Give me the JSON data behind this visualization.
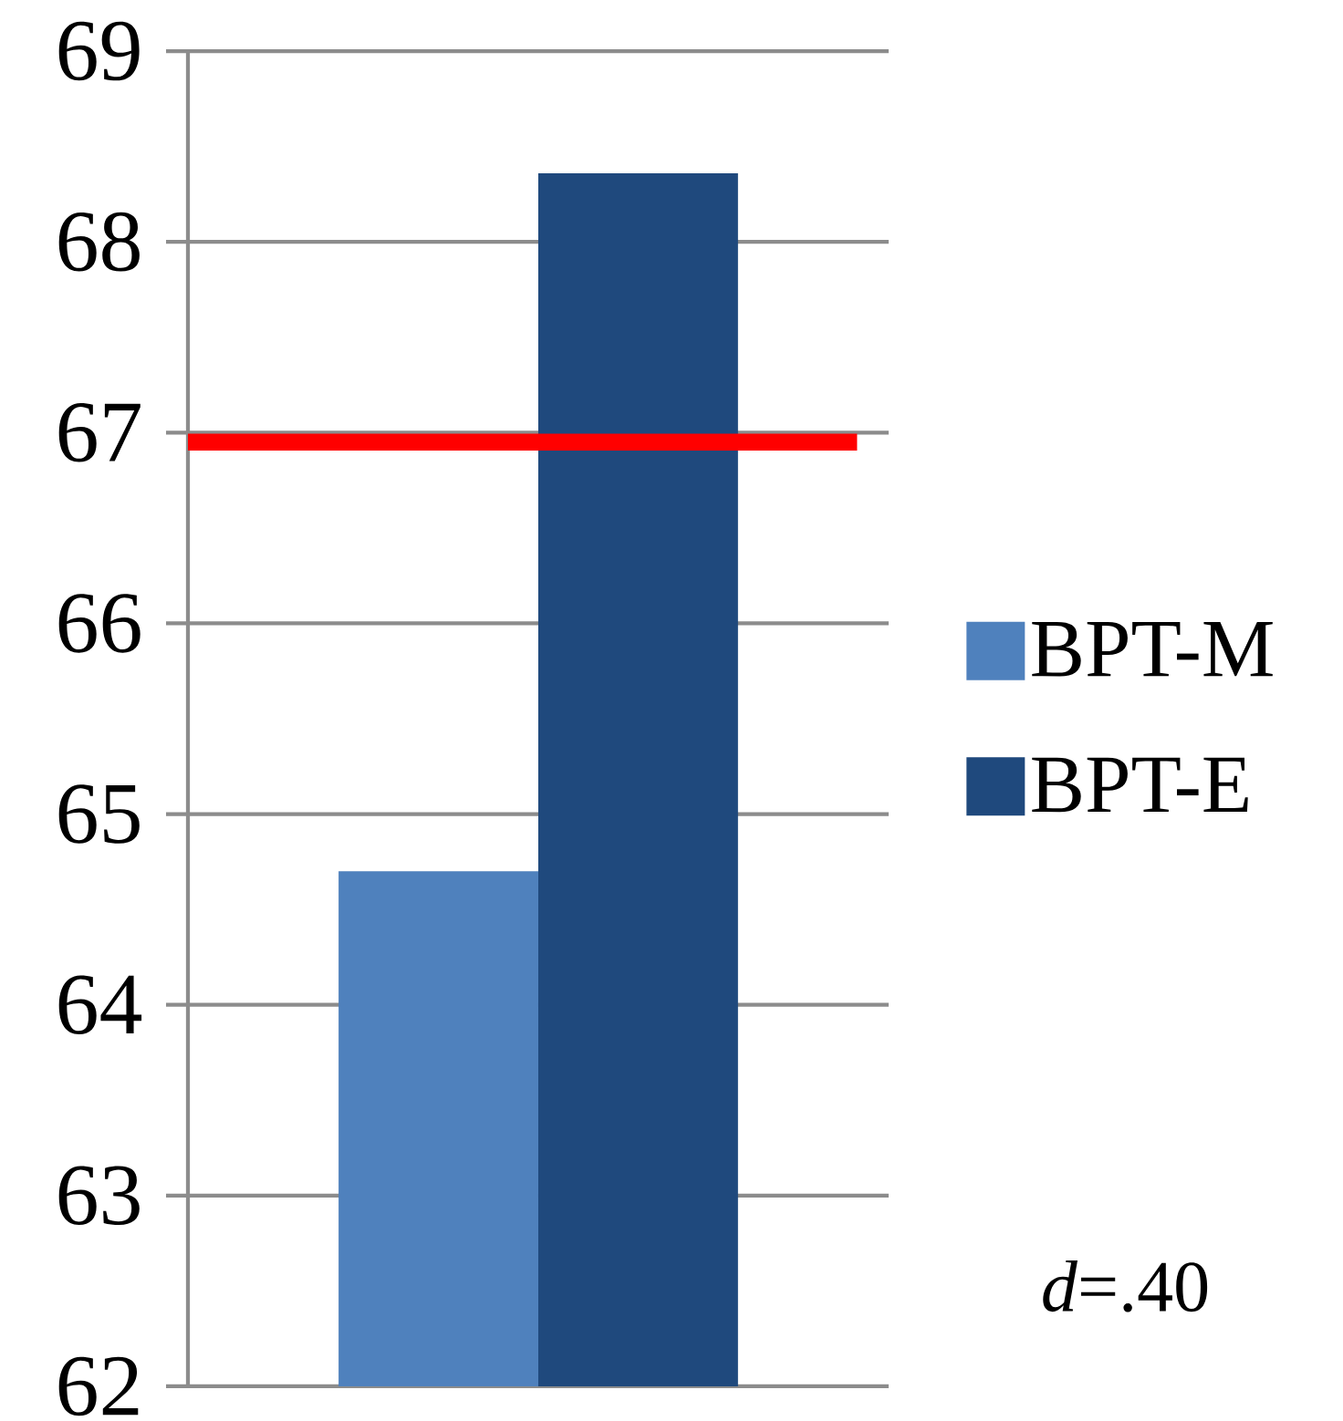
{
  "chart_data": {
    "type": "bar",
    "categories": [
      null
    ],
    "series": [
      {
        "name": "BPT-M",
        "color": "#4f81bd",
        "values": [
          64.7
        ]
      },
      {
        "name": "BPT-E",
        "color": "#1f497d",
        "values": [
          68.36
        ]
      }
    ],
    "ylim": [
      62,
      69
    ],
    "yticks": [
      62,
      63,
      64,
      65,
      66,
      67,
      68,
      69
    ],
    "grid": "y",
    "legend": "right",
    "ref_lines": [
      {
        "axis": "y",
        "value": 66.95,
        "color": "#ff0000"
      }
    ],
    "annotations": [
      "*d*=.40"
    ]
  }
}
